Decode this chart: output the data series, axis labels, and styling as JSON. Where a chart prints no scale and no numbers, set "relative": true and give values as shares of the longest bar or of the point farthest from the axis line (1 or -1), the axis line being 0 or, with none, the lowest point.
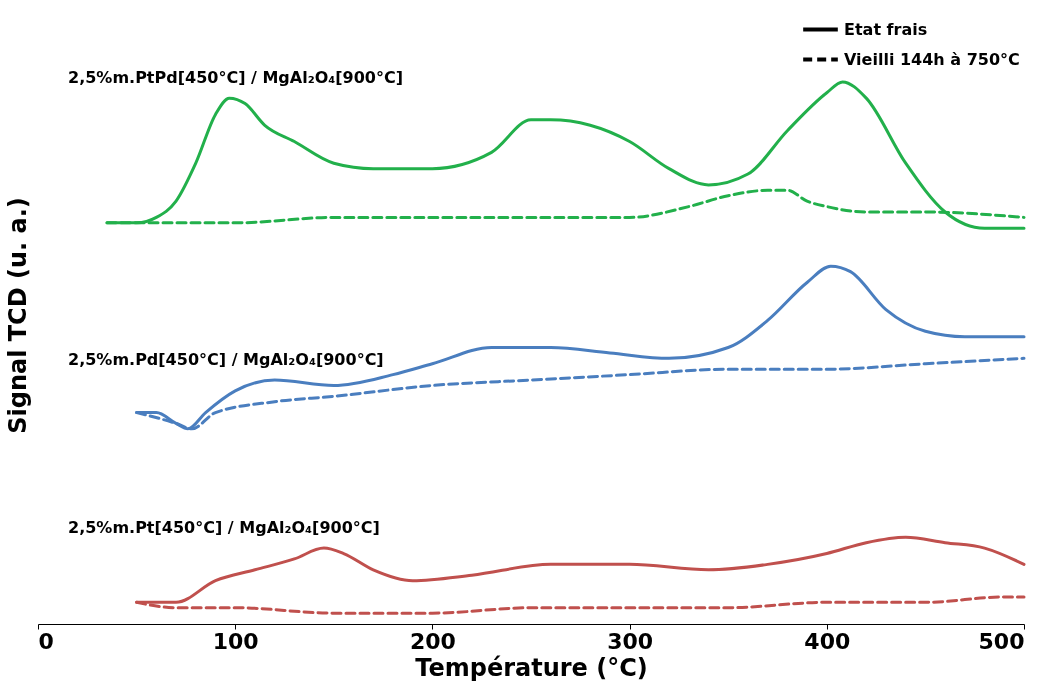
{
  "chart_data": {
    "type": "line",
    "relative": true,
    "xlabel": "Température (°C)",
    "ylabel": "Signal TCD (u. a.)",
    "xlim": [
      0,
      500
    ],
    "xticks": [
      0,
      100,
      200,
      300,
      400,
      500
    ],
    "grid": false,
    "marker": "none",
    "annotations": [
      "Etat frais",
      "Vieilli 144h à 750°C",
      "2,5%m.PtPd[450°C] / MgAl₂O₄[900°C]",
      "2,5%m.Pd[450°C] / MgAl₂O₄[900°C]",
      "2,5%m.Pt[450°C] / MgAl₂O₄[900°C]"
    ],
    "series": [
      {
        "color": "#22b04b",
        "line_style": "solid",
        "x": [
          35,
          50,
          60,
          70,
          80,
          90,
          97,
          105,
          115,
          130,
          150,
          170,
          200,
          230,
          250,
          260,
          280,
          300,
          320,
          340,
          360,
          380,
          400,
          408,
          420,
          440,
          460,
          480,
          500
        ],
        "values": [
          0.74,
          0.74,
          0.75,
          0.78,
          0.85,
          0.94,
          0.97,
          0.96,
          0.92,
          0.89,
          0.85,
          0.84,
          0.84,
          0.87,
          0.93,
          0.93,
          0.92,
          0.89,
          0.84,
          0.81,
          0.83,
          0.91,
          0.98,
          1,
          0.97,
          0.85,
          0.76,
          0.73,
          0.73
        ]
      },
      {
        "color": "#22b04b",
        "line_style": "dashed",
        "x": [
          35,
          60,
          100,
          150,
          200,
          250,
          300,
          330,
          350,
          370,
          380,
          390,
          400,
          420,
          450,
          500
        ],
        "values": [
          0.74,
          0.74,
          0.74,
          0.75,
          0.75,
          0.75,
          0.75,
          0.77,
          0.79,
          0.8,
          0.8,
          0.78,
          0.77,
          0.76,
          0.76,
          0.75
        ]
      },
      {
        "color": "#4a7ebf",
        "line_style": "solid",
        "x": [
          50,
          60,
          70,
          76,
          85,
          100,
          120,
          150,
          180,
          200,
          230,
          260,
          290,
          320,
          350,
          370,
          390,
          402,
          412,
          430,
          450,
          470,
          500
        ],
        "values": [
          0.39,
          0.39,
          0.37,
          0.36,
          0.39,
          0.43,
          0.45,
          0.44,
          0.46,
          0.48,
          0.51,
          0.51,
          0.5,
          0.49,
          0.51,
          0.56,
          0.63,
          0.66,
          0.65,
          0.58,
          0.54,
          0.53,
          0.53
        ]
      },
      {
        "color": "#4a7ebf",
        "line_style": "dashed",
        "x": [
          50,
          70,
          78,
          90,
          120,
          150,
          200,
          250,
          300,
          350,
          400,
          450,
          500
        ],
        "values": [
          0.39,
          0.37,
          0.36,
          0.39,
          0.41,
          0.42,
          0.44,
          0.45,
          0.46,
          0.47,
          0.47,
          0.48,
          0.49
        ]
      },
      {
        "color": "#c0504d",
        "line_style": "solid",
        "x": [
          50,
          70,
          90,
          110,
          130,
          145,
          155,
          170,
          190,
          220,
          260,
          300,
          340,
          370,
          400,
          420,
          440,
          460,
          480,
          500
        ],
        "values": [
          0.04,
          0.04,
          0.08,
          0.1,
          0.12,
          0.14,
          0.13,
          0.1,
          0.08,
          0.09,
          0.11,
          0.11,
          0.1,
          0.11,
          0.13,
          0.15,
          0.16,
          0.15,
          0.14,
          0.11
        ]
      },
      {
        "color": "#c0504d",
        "line_style": "dashed",
        "x": [
          50,
          70,
          100,
          150,
          200,
          250,
          300,
          350,
          400,
          450,
          490,
          500
        ],
        "values": [
          0.04,
          0.03,
          0.03,
          0.02,
          0.02,
          0.03,
          0.03,
          0.03,
          0.04,
          0.04,
          0.05,
          0.05
        ]
      }
    ]
  }
}
